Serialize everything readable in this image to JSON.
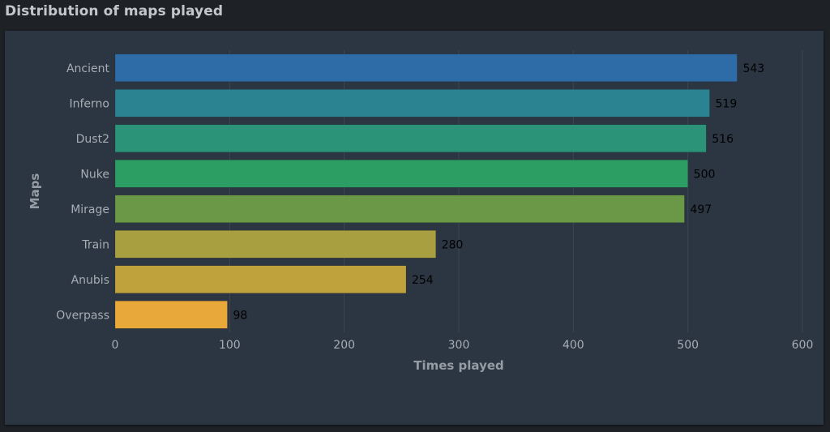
{
  "page": {
    "title": "Distribution of maps played"
  },
  "chart_data": {
    "type": "bar",
    "orientation": "horizontal",
    "categories": [
      "Ancient",
      "Inferno",
      "Dust2",
      "Nuke",
      "Mirage",
      "Train",
      "Anubis",
      "Overpass"
    ],
    "values": [
      543,
      519,
      516,
      500,
      497,
      280,
      254,
      98
    ],
    "value_labels": [
      "543",
      "519",
      "516",
      "500",
      "497",
      "280",
      "254",
      "98"
    ],
    "colors": [
      "#2e6ca8",
      "#2b8391",
      "#2a9378",
      "#2c9e64",
      "#6a9846",
      "#a8a040",
      "#bfa23c",
      "#e8a93a"
    ],
    "xlabel": "Times played",
    "ylabel": "Maps",
    "xlim": [
      0,
      600
    ],
    "xticks": [
      0,
      100,
      200,
      300,
      400,
      500,
      600
    ],
    "xtick_labels": [
      "0",
      "100",
      "200",
      "300",
      "400",
      "500",
      "600"
    ],
    "grid": true,
    "grid_color": "#3c4754",
    "panel_color": "#2c3642",
    "background_color": "#1e2226"
  }
}
